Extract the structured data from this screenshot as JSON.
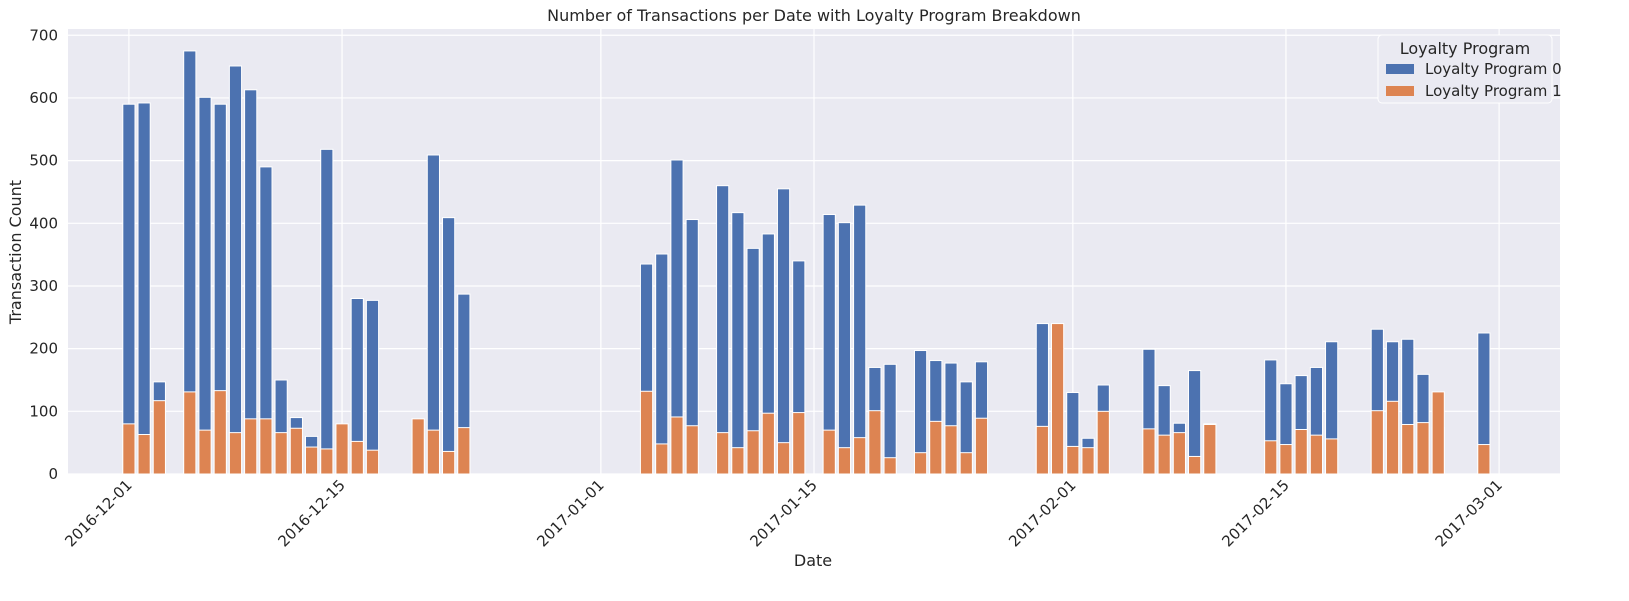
{
  "chart_data": {
    "type": "bar",
    "title": "Number of Transactions per Date with Loyalty Program Breakdown",
    "xlabel": "Date",
    "ylabel": "Transaction Count",
    "ylim": [
      0,
      710
    ],
    "xlim": [
      "2016-11-27",
      "2017-03-05"
    ],
    "yticks": [
      0,
      100,
      200,
      300,
      400,
      500,
      600,
      700
    ],
    "xticks": [
      "2016-12-01",
      "2016-12-15",
      "2017-01-01",
      "2017-01-15",
      "2017-02-01",
      "2017-02-15",
      "2017-03-01"
    ],
    "grid": true,
    "legend": {
      "title": "Loyalty Program",
      "position": "top-right"
    },
    "series": [
      {
        "name": "Loyalty Program 0",
        "color": "#4C72B0",
        "x": [
          "2016-12-01",
          "2016-12-02",
          "2016-12-03",
          "2016-12-05",
          "2016-12-06",
          "2016-12-07",
          "2016-12-08",
          "2016-12-09",
          "2016-12-10",
          "2016-12-11",
          "2016-12-12",
          "2016-12-13",
          "2016-12-14",
          "2016-12-15",
          "2016-12-16",
          "2016-12-17",
          "2016-12-20",
          "2016-12-21",
          "2016-12-22",
          "2016-12-23",
          "2017-01-04",
          "2017-01-05",
          "2017-01-06",
          "2017-01-07",
          "2017-01-09",
          "2017-01-10",
          "2017-01-11",
          "2017-01-12",
          "2017-01-13",
          "2017-01-14",
          "2017-01-16",
          "2017-01-17",
          "2017-01-18",
          "2017-01-19",
          "2017-01-20",
          "2017-01-22",
          "2017-01-23",
          "2017-01-24",
          "2017-01-25",
          "2017-01-26",
          "2017-01-30",
          "2017-01-31",
          "2017-02-01",
          "2017-02-02",
          "2017-02-03",
          "2017-02-06",
          "2017-02-07",
          "2017-02-08",
          "2017-02-09",
          "2017-02-10",
          "2017-02-14",
          "2017-02-15",
          "2017-02-16",
          "2017-02-17",
          "2017-02-18",
          "2017-02-21",
          "2017-02-22",
          "2017-02-23",
          "2017-02-24",
          "2017-02-25",
          "2017-02-28"
        ],
        "values": [
          590,
          592,
          147,
          675,
          601,
          590,
          651,
          613,
          490,
          150,
          90,
          60,
          518,
          40,
          280,
          277,
          64,
          509,
          409,
          287,
          335,
          351,
          501,
          406,
          460,
          417,
          360,
          383,
          455,
          340,
          414,
          401,
          429,
          170,
          175,
          197,
          181,
          177,
          147,
          179,
          240,
          129,
          130,
          57,
          142,
          199,
          141,
          81,
          165,
          80,
          182,
          144,
          157,
          170,
          211,
          231,
          211,
          215,
          159,
          74,
          225
        ]
      },
      {
        "name": "Loyalty Program 1",
        "color": "#DD8452",
        "x": [
          "2016-12-01",
          "2016-12-02",
          "2016-12-03",
          "2016-12-05",
          "2016-12-06",
          "2016-12-07",
          "2016-12-08",
          "2016-12-09",
          "2016-12-10",
          "2016-12-11",
          "2016-12-12",
          "2016-12-13",
          "2016-12-14",
          "2016-12-15",
          "2016-12-16",
          "2016-12-17",
          "2016-12-20",
          "2016-12-21",
          "2016-12-22",
          "2016-12-23",
          "2017-01-04",
          "2017-01-05",
          "2017-01-06",
          "2017-01-07",
          "2017-01-09",
          "2017-01-10",
          "2017-01-11",
          "2017-01-12",
          "2017-01-13",
          "2017-01-14",
          "2017-01-16",
          "2017-01-17",
          "2017-01-18",
          "2017-01-19",
          "2017-01-20",
          "2017-01-22",
          "2017-01-23",
          "2017-01-24",
          "2017-01-25",
          "2017-01-26",
          "2017-01-30",
          "2017-01-31",
          "2017-02-01",
          "2017-02-02",
          "2017-02-03",
          "2017-02-06",
          "2017-02-07",
          "2017-02-08",
          "2017-02-09",
          "2017-02-10",
          "2017-02-14",
          "2017-02-15",
          "2017-02-16",
          "2017-02-17",
          "2017-02-18",
          "2017-02-21",
          "2017-02-22",
          "2017-02-23",
          "2017-02-24",
          "2017-02-25",
          "2017-02-28"
        ],
        "values": [
          80,
          63,
          117,
          131,
          70,
          133,
          66,
          88,
          88,
          66,
          73,
          43,
          40,
          80,
          52,
          38,
          88,
          70,
          36,
          74,
          132,
          48,
          91,
          77,
          66,
          42,
          69,
          97,
          50,
          98,
          70,
          42,
          58,
          101,
          26,
          34,
          84,
          77,
          34,
          89,
          76,
          240,
          44,
          42,
          100,
          72,
          62,
          66,
          28,
          79,
          53,
          47,
          71,
          62,
          56,
          101,
          116,
          79,
          82,
          131,
          47
        ]
      }
    ]
  }
}
